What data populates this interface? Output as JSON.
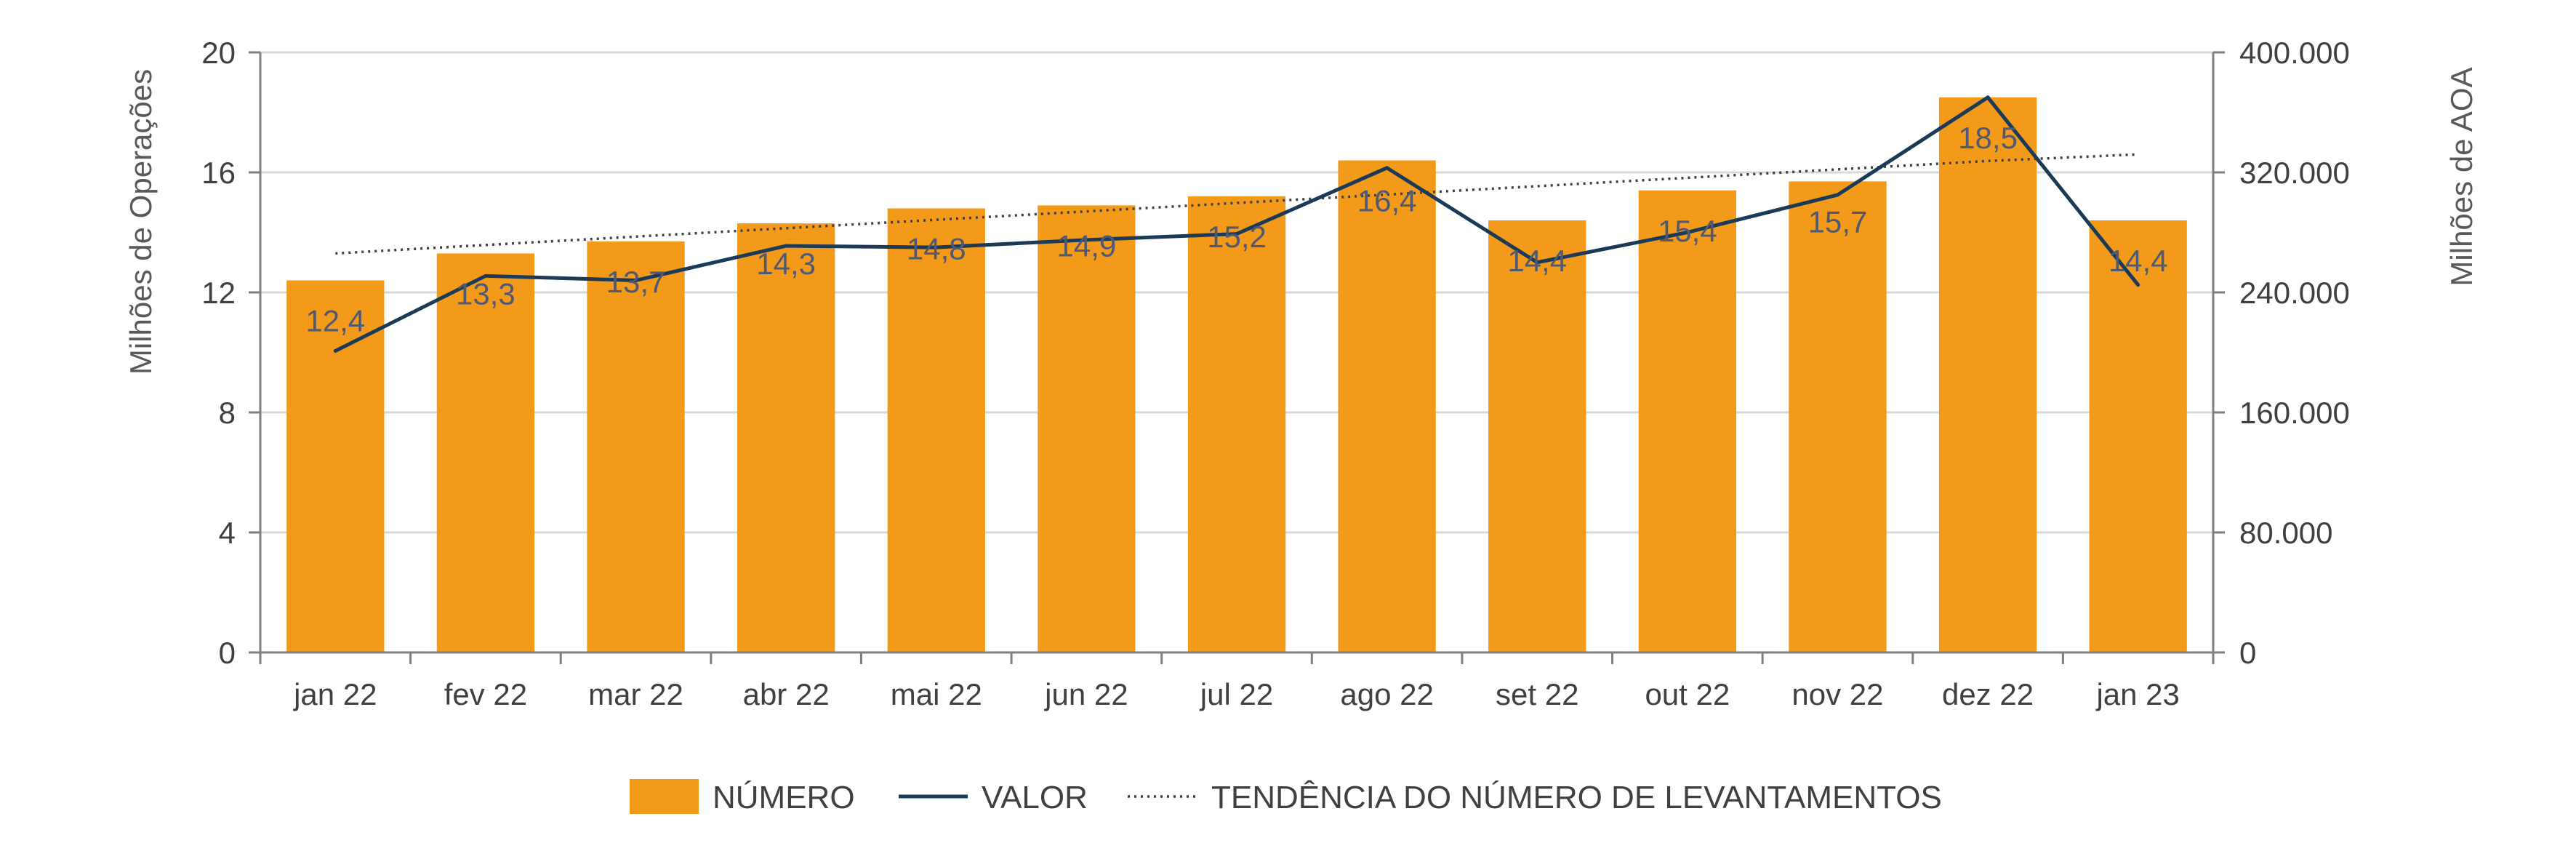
{
  "chart_data": {
    "type": "bar",
    "categories": [
      "jan 22",
      "fev 22",
      "mar 22",
      "abr 22",
      "mai 22",
      "jun 22",
      "jul 22",
      "ago 22",
      "set 22",
      "out 22",
      "nov 22",
      "dez 22",
      "jan 23"
    ],
    "series": [
      {
        "name": "NÚMERO",
        "type": "bar",
        "axis": "left",
        "color": "#f39a1b",
        "values": [
          12.4,
          13.3,
          13.7,
          14.3,
          14.8,
          14.9,
          15.2,
          16.4,
          14.4,
          15.4,
          15.7,
          18.5,
          14.4
        ],
        "labels": [
          "12,4",
          "13,3",
          "13,7",
          "14,3",
          "14,8",
          "14,9",
          "15,2",
          "16,4",
          "14,4",
          "15,4",
          "15,7",
          "18,5",
          "14,4"
        ]
      },
      {
        "name": "VALOR",
        "type": "line",
        "axis": "right",
        "color": "#1b3a57",
        "values": [
          201000,
          251000,
          248000,
          271000,
          270000,
          275000,
          279000,
          323000,
          260000,
          280000,
          305000,
          370000,
          245000
        ]
      },
      {
        "name": "TENDÊNCIA DO NÚMERO DE LEVANTAMENTOS",
        "type": "trend",
        "axis": "left",
        "style": "dotted",
        "color": "#404040",
        "values": [
          13.3,
          13.58,
          13.86,
          14.14,
          14.42,
          14.7,
          14.98,
          15.26,
          15.54,
          15.82,
          16.1,
          16.38,
          16.6
        ]
      }
    ],
    "ylabel": "Milhões de Operações",
    "ylabel_right": "Milhões de AOA",
    "ylim": [
      0,
      20
    ],
    "ylim_right": [
      0,
      400000
    ],
    "yticks": [
      "0",
      "4",
      "8",
      "12",
      "16",
      "20"
    ],
    "yticks_values": [
      0,
      4,
      8,
      12,
      16,
      20
    ],
    "yticks_right": [
      "0",
      "80.000",
      "160.000",
      "240.000",
      "320.000",
      "400.000"
    ],
    "grid": true,
    "legend_position": "bottom"
  }
}
